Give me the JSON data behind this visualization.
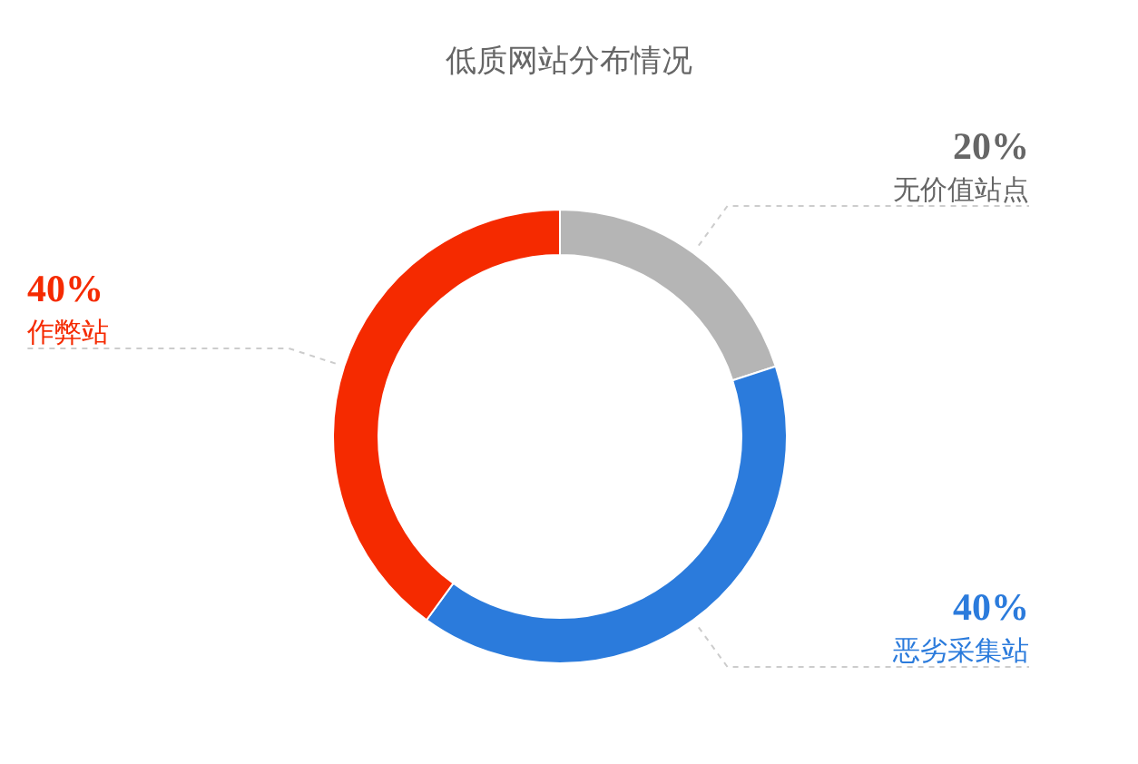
{
  "chart_data": {
    "type": "donut",
    "title": "低质网站分布情况",
    "categories": [
      "无价值站点",
      "恶劣采集站",
      "作弊站"
    ],
    "values": [
      20,
      40,
      40
    ],
    "colors": [
      "#b5b5b5",
      "#2b7bdc",
      "#f52a00"
    ],
    "value_labels": [
      "20%",
      "40%",
      "40%"
    ],
    "legend": false
  }
}
